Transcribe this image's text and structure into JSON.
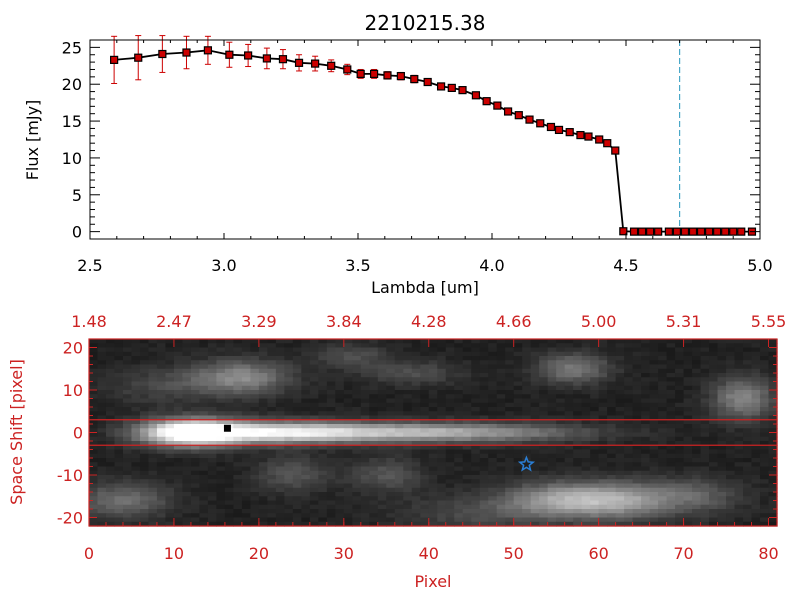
{
  "chart_data": [
    {
      "type": "line",
      "title": "2210215.38",
      "xlabel": "Lambda [um]",
      "ylabel": "Flux [mJy]",
      "xlim": [
        2.5,
        5.0
      ],
      "ylim": [
        -1,
        26
      ],
      "xticks": [
        "2.5",
        "3.0",
        "3.5",
        "4.0",
        "4.5",
        "5.0"
      ],
      "yticks": [
        "0",
        "5",
        "10",
        "15",
        "20",
        "25"
      ],
      "grid": false,
      "colors": {
        "line": "#000000",
        "markers": "#cc0000",
        "errorbars": "#cc0000",
        "vline": "#4aa8c8"
      },
      "vline_x": 4.7,
      "series": [
        {
          "x": [
            2.59,
            2.68,
            2.77,
            2.86,
            2.94,
            3.02,
            3.09,
            3.16,
            3.22,
            3.28,
            3.34,
            3.4,
            3.46,
            3.51,
            3.56,
            3.61,
            3.66,
            3.71,
            3.76,
            3.81,
            3.85,
            3.89,
            3.94,
            3.98,
            4.02,
            4.06,
            4.1,
            4.14,
            4.18,
            4.22,
            4.25,
            4.29,
            4.33,
            4.36,
            4.4,
            4.43,
            4.46,
            4.49,
            4.53,
            4.56,
            4.59,
            4.62,
            4.66,
            4.69,
            4.72,
            4.75,
            4.78,
            4.81,
            4.84,
            4.87,
            4.9,
            4.93,
            4.97
          ],
          "y": [
            23.3,
            23.6,
            24.1,
            24.3,
            24.6,
            24.0,
            23.9,
            23.5,
            23.4,
            22.9,
            22.8,
            22.5,
            22.0,
            21.4,
            21.4,
            21.2,
            21.1,
            20.7,
            20.3,
            19.7,
            19.5,
            19.2,
            18.5,
            17.7,
            17.1,
            16.3,
            15.8,
            15.2,
            14.7,
            14.2,
            13.8,
            13.5,
            13.1,
            12.9,
            12.5,
            12.0,
            11.0,
            0.05,
            0.0,
            0.0,
            0.0,
            0.0,
            0.0,
            0.0,
            0.0,
            0.0,
            0.0,
            0.0,
            0.0,
            0.0,
            0.0,
            0.0,
            0.0
          ],
          "yerr": [
            3.2,
            3.0,
            2.5,
            2.2,
            1.9,
            1.7,
            1.5,
            1.4,
            1.3,
            1.1,
            1.0,
            0.8,
            0.7,
            0.6,
            0.6,
            0.5,
            0.5,
            0.5,
            0.4,
            0.4,
            0.4,
            0.4,
            0.4,
            0.4,
            0.3,
            0.3,
            0.3,
            0.3,
            0.3,
            0.3,
            0.3,
            0.3,
            0.3,
            0.3,
            0.3,
            0.3,
            0.3,
            0.2,
            0.2,
            0.2,
            0.2,
            0.2,
            0.2,
            0.2,
            0.2,
            0.2,
            0.2,
            0.2,
            0.2,
            0.2,
            0.2,
            0.2,
            0.2
          ]
        }
      ]
    },
    {
      "type": "heatmap",
      "xlabel": "Pixel",
      "ylabel": "Space Shift [pixel]",
      "xlim": [
        0,
        81
      ],
      "ylim": [
        -22,
        22
      ],
      "xticks": [
        "0",
        "10",
        "20",
        "30",
        "40",
        "50",
        "60",
        "70",
        "80"
      ],
      "yticks": [
        "-20",
        "-10",
        "0",
        "10",
        "20"
      ],
      "top_axis_ticks": [
        "1.48",
        "2.47",
        "3.29",
        "3.84",
        "4.28",
        "4.66",
        "5.00",
        "5.31",
        "5.55"
      ],
      "axis_color": "#cc2222",
      "extraction_aperture": [
        -3,
        3
      ],
      "grid": false,
      "colormap": "gray",
      "blobs": [
        {
          "x": 12,
          "y": 0,
          "sx": 4.2,
          "sy": 2.2,
          "a": 1.0
        },
        {
          "x": 22,
          "y": 0,
          "sx": 7,
          "sy": 1.8,
          "a": 0.65
        },
        {
          "x": 35,
          "y": 0,
          "sx": 9,
          "sy": 1.6,
          "a": 0.45
        },
        {
          "x": 48,
          "y": 0,
          "sx": 9,
          "sy": 1.6,
          "a": 0.3
        },
        {
          "x": 18,
          "y": 13,
          "sx": 4,
          "sy": 2.8,
          "a": 0.4
        },
        {
          "x": 9,
          "y": 11,
          "sx": 5,
          "sy": 3,
          "a": 0.15
        },
        {
          "x": 38,
          "y": 14,
          "sx": 4,
          "sy": 2,
          "a": 0.18
        },
        {
          "x": 31,
          "y": 18,
          "sx": 3,
          "sy": 2,
          "a": 0.18
        },
        {
          "x": 57,
          "y": 15,
          "sx": 3,
          "sy": 2.5,
          "a": 0.35
        },
        {
          "x": 77,
          "y": 8,
          "sx": 2.5,
          "sy": 3.5,
          "a": 0.4
        },
        {
          "x": 4,
          "y": -16,
          "sx": 4,
          "sy": 3,
          "a": 0.3
        },
        {
          "x": 24,
          "y": -10,
          "sx": 3,
          "sy": 3,
          "a": 0.2
        },
        {
          "x": 35,
          "y": -10,
          "sx": 3,
          "sy": 3,
          "a": 0.2
        },
        {
          "x": 56,
          "y": -16,
          "sx": 5,
          "sy": 3,
          "a": 0.5
        },
        {
          "x": 63,
          "y": -16,
          "sx": 4,
          "sy": 3,
          "a": 0.35
        },
        {
          "x": 71,
          "y": -15,
          "sx": 4,
          "sy": 3,
          "a": 0.25
        },
        {
          "x": 45,
          "y": -19,
          "sx": 6,
          "sy": 3,
          "a": 0.15
        }
      ],
      "markers": [
        {
          "shape": "square",
          "x": 16.3,
          "y": 1,
          "color": "#000000"
        },
        {
          "shape": "star",
          "x": 51.5,
          "y": -7.5,
          "color": "#2a7fd6"
        }
      ]
    }
  ]
}
